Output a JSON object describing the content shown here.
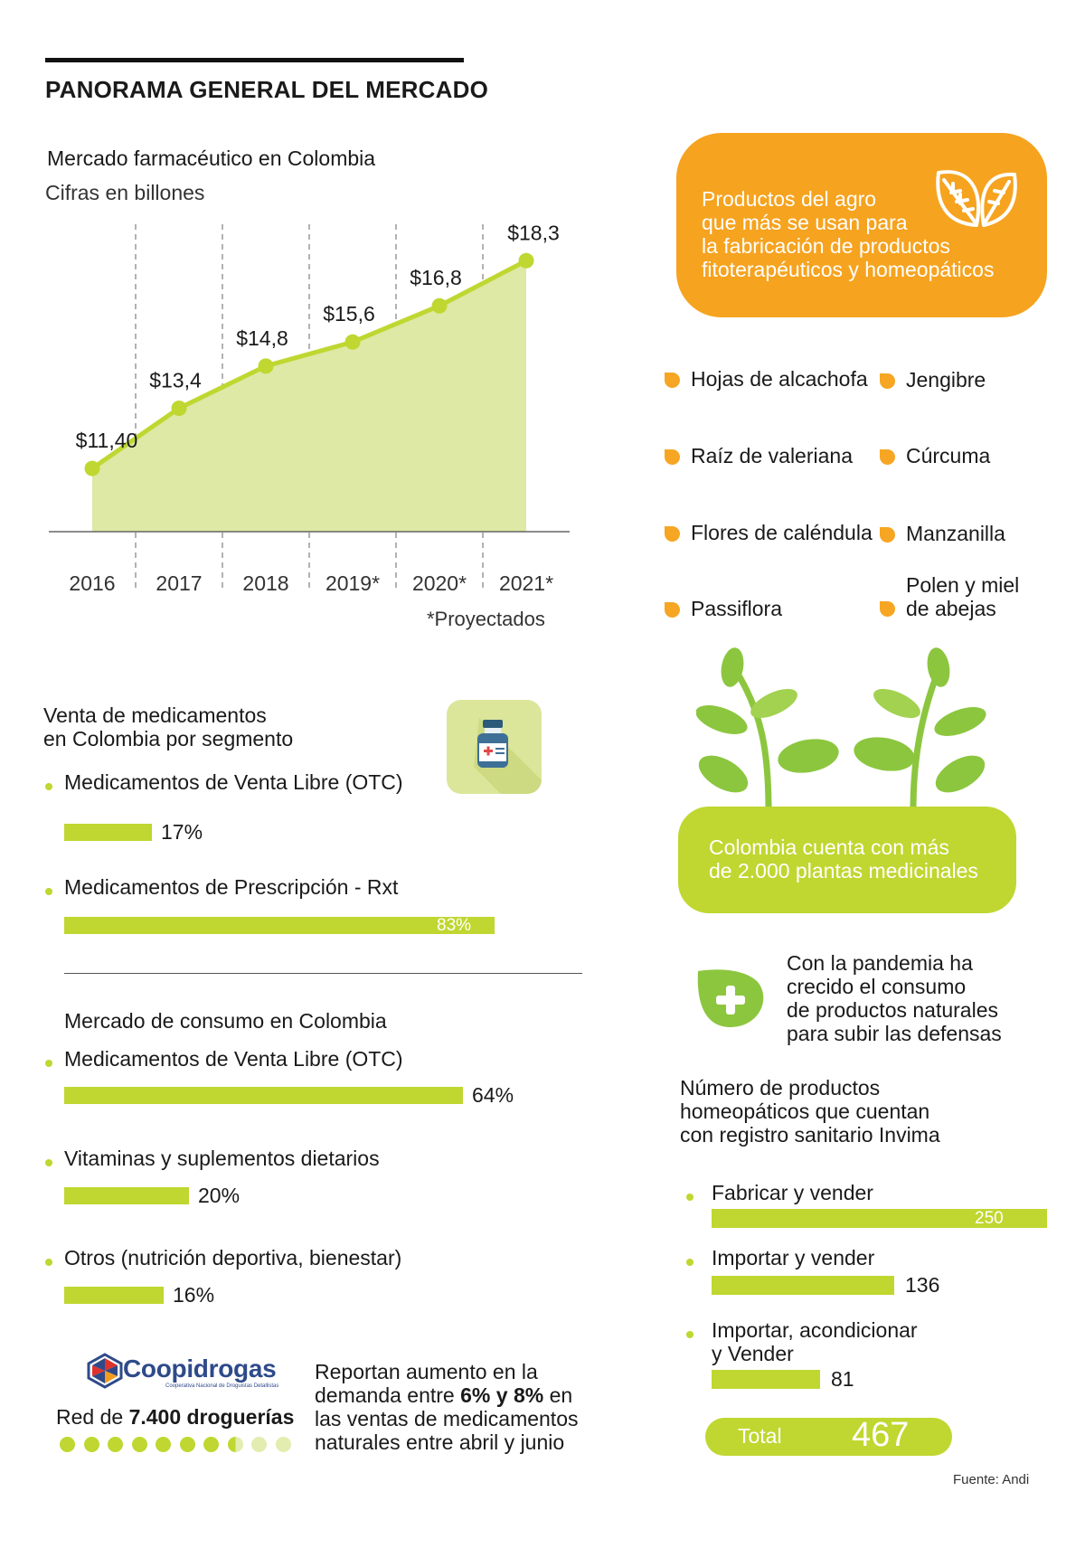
{
  "header": {
    "title": "PANORAMA GENERAL DEL MERCADO"
  },
  "chart1": {
    "title": "Mercado farmacéutico en Colombia",
    "subtitle": "Cifras en billones",
    "note": "*Proyectados"
  },
  "chart_data": [
    {
      "type": "area",
      "title": "Mercado farmacéutico en Colombia",
      "subtitle": "Cifras en billones",
      "categories": [
        "2016",
        "2017",
        "2018",
        "2019*",
        "2020*",
        "2021*"
      ],
      "values": [
        11.4,
        13.4,
        14.8,
        15.6,
        16.8,
        18.3
      ],
      "labels": [
        "$11,40",
        "$13,4",
        "$14,8",
        "$15,6",
        "$16,8",
        "$18,3"
      ],
      "ylim": [
        9.3,
        19.6
      ],
      "grid": "vertical dashed",
      "note": "*Proyectados"
    },
    {
      "type": "bar",
      "title": "Venta de medicamentos en Colombia por segmento",
      "categories": [
        "Medicamentos de Venta Libre (OTC)",
        "Medicamentos de Prescripción - Rxt"
      ],
      "values": [
        17,
        83
      ],
      "labels": [
        "17%",
        "83%"
      ]
    },
    {
      "type": "bar",
      "title": "Mercado de consumo en Colombia",
      "categories": [
        "Medicamentos de Venta Libre (OTC)",
        "Vitaminas y suplementos dietarios",
        "Otros (nutrición deportiva, bienestar)"
      ],
      "values": [
        64,
        20,
        16
      ],
      "labels": [
        "64%",
        "20%",
        "16%"
      ]
    },
    {
      "type": "bar",
      "title": "Número de productos homeopáticos que cuentan con registro sanitario Invima",
      "categories": [
        "Fabricar y vender",
        "Importar y vender",
        "Importar, acondicionar y Vender"
      ],
      "values": [
        250,
        136,
        81
      ],
      "labels": [
        "250",
        "136",
        "81"
      ],
      "total_label": "Total",
      "total": "467"
    }
  ],
  "segment": {
    "title_l1": "Venta de medicamentos",
    "title_l2": "en Colombia por segmento",
    "items": [
      {
        "label": "Medicamentos de Venta Libre (OTC)",
        "value": "17%",
        "pct": 17
      },
      {
        "label": "Medicamentos de Prescripción - Rxt",
        "value": "83%",
        "pct": 83
      }
    ]
  },
  "consumo": {
    "title": "Mercado de consumo en Colombia",
    "items": [
      {
        "label": "Medicamentos de Venta Libre (OTC)",
        "value": "64%",
        "pct": 64
      },
      {
        "label": "Vitaminas y suplementos dietarios",
        "value": "20%",
        "pct": 20
      },
      {
        "label": "Otros (nutrición deportiva, bienestar)",
        "value": "16%",
        "pct": 16
      }
    ]
  },
  "coopidrogas": {
    "logo_text": "Coopidrogas",
    "logo_tagline": "Cooperativa Nacional de Droguistas Detallistas",
    "red_prefix": "Red de ",
    "red_bold": "7.400 droguerías",
    "dots_filled": 7.5,
    "dots_total": 10,
    "text_l1": "Reportan aumento en la",
    "text_l2_a": "demanda entre ",
    "text_l2_b": "6% y 8%",
    "text_l2_c": " en",
    "text_l3": "las ventas de medicamentos",
    "text_l4": "naturales entre abril y junio"
  },
  "agro": {
    "box_l1": "Productos del agro",
    "box_l2": "que más se usan para",
    "box_l3": "la fabricación de productos",
    "box_l4": "fitoterapéuticos y homeopáticos",
    "items": [
      "Hojas de alcachofa",
      "Jengibre",
      "Raíz de valeriana",
      "Cúrcuma",
      "Flores de caléndula",
      "Manzanilla",
      "Passiflora",
      "Polen y miel",
      "de abejas"
    ]
  },
  "plantas": {
    "l1": "Colombia cuenta con más",
    "l2": "de 2.000 plantas medicinales"
  },
  "pandemia": {
    "l1": "Con la pandemia ha",
    "l2": "crecido el consumo",
    "l3": "de productos naturales",
    "l4": "para subir las defensas"
  },
  "homeo": {
    "title_l1": "Número de productos",
    "title_l2": "homeopáticos que cuentan",
    "title_l3": "con registro sanitario Invima",
    "items": [
      {
        "label": "Fabricar y vender",
        "value": "250",
        "n": 250
      },
      {
        "label": "Importar y vender",
        "value": "136",
        "n": 136
      },
      {
        "label_l1": "Importar, acondicionar",
        "label_l2": "y Vender",
        "value": "81",
        "n": 81
      }
    ],
    "total_label": "Total",
    "total_value": "467"
  },
  "source": "Fuente: Andi",
  "colors": {
    "green": "#bfd730",
    "area": "#dde9a4",
    "orange": "#f6a31f",
    "leaf": "#8cc63f"
  },
  "icons": [
    "medicine-bottle-icon",
    "leaves-icon",
    "plus-leaf-icon",
    "plant-icon",
    "coopidrogas-logo-icon"
  ]
}
